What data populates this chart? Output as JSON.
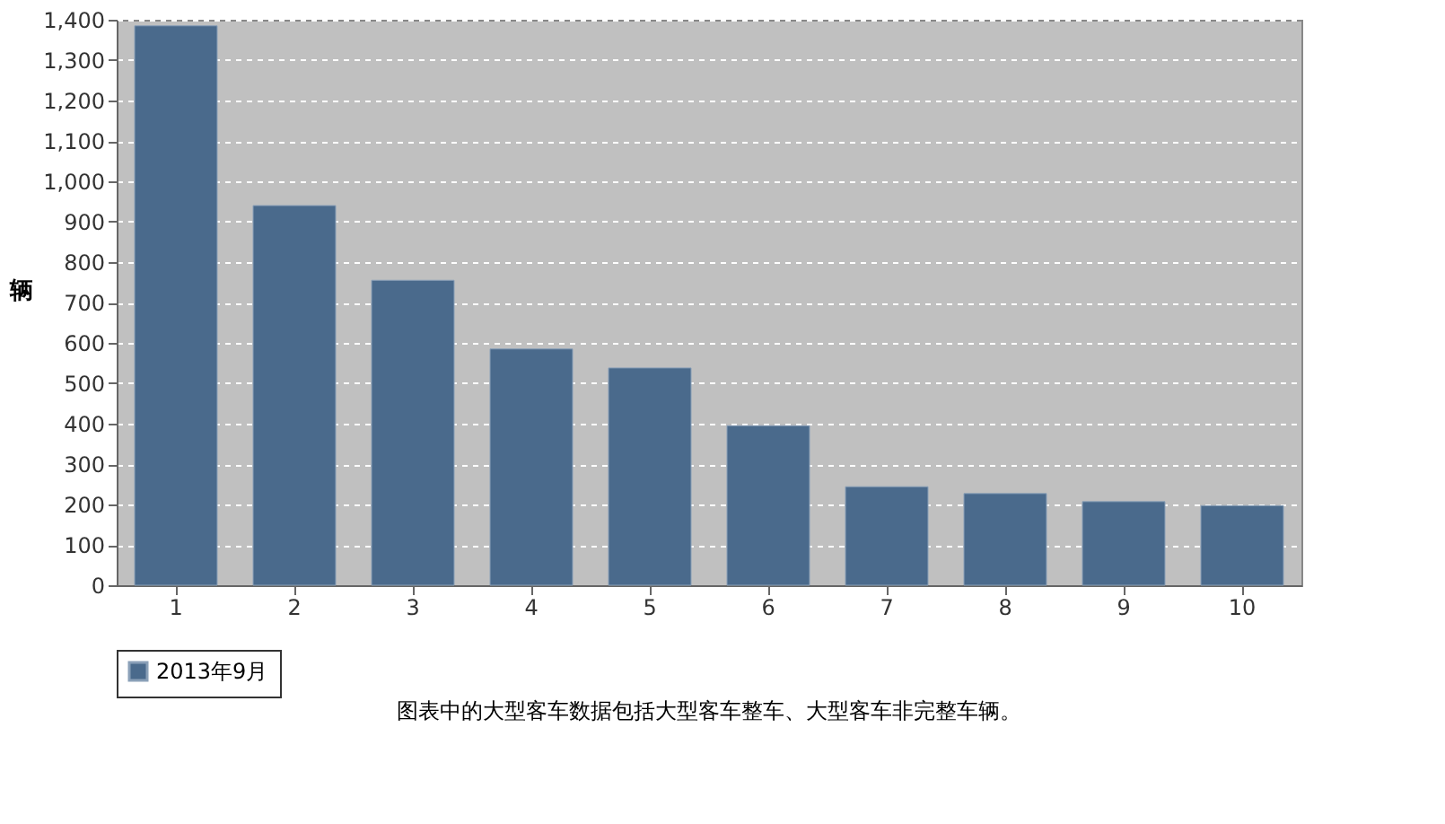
{
  "chart_data": {
    "type": "bar",
    "ylabel": "辆",
    "categories": [
      "1",
      "2",
      "3",
      "4",
      "5",
      "6",
      "7",
      "8",
      "9",
      "10"
    ],
    "series": [
      {
        "name": "2013年9月",
        "color": "#4a6a8c",
        "values": [
          1385,
          940,
          755,
          585,
          538,
          395,
          244,
          227,
          207,
          197
        ]
      }
    ],
    "ylim": [
      0,
      1400
    ],
    "yticks": [
      0,
      100,
      200,
      300,
      400,
      500,
      600,
      700,
      800,
      900,
      {
        "value": 1000,
        "label": "1,000"
      },
      {
        "value": 1100,
        "label": "1,100"
      },
      {
        "value": 1200,
        "label": "1,200"
      },
      {
        "value": 1300,
        "label": "1,300"
      },
      {
        "value": 1400,
        "label": "1,400"
      }
    ],
    "grid": "y",
    "legend": "bottom",
    "annotations": [
      "图表中的大型客车数据包括大型客车整车、大型客车非完整车辆。"
    ]
  }
}
